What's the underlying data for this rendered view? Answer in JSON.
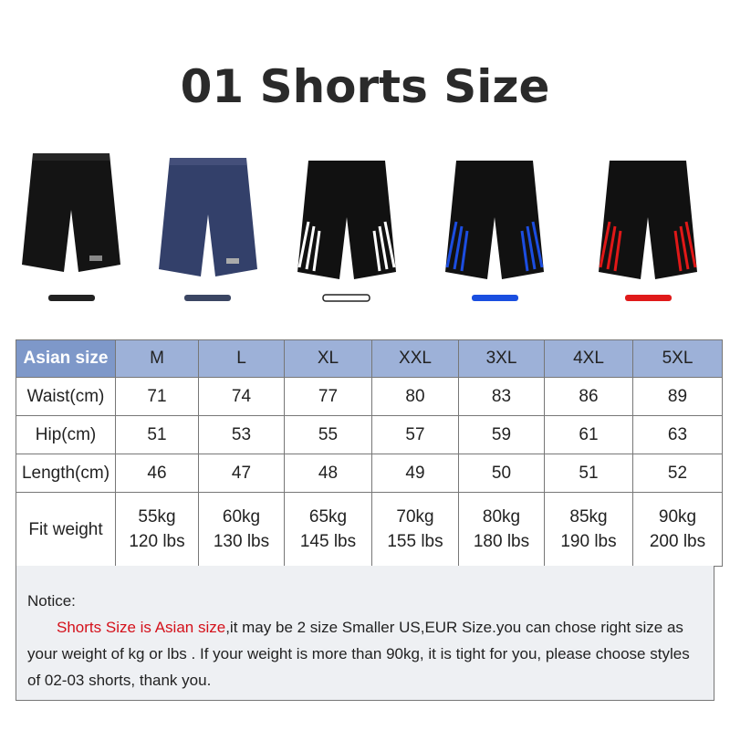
{
  "header": {
    "title": "01 Shorts Size"
  },
  "table": {
    "columns": [
      "Asian size",
      "M",
      "L",
      "XL",
      "XXL",
      "3XL",
      "4XL",
      "5XL"
    ],
    "rows": [
      [
        "Waist(cm)",
        "71",
        "74",
        "77",
        "80",
        "83",
        "86",
        "89"
      ],
      [
        "Hip(cm)",
        "51",
        "53",
        "55",
        "57",
        "59",
        "61",
        "63"
      ],
      [
        "Length(cm)",
        "46",
        "47",
        "48",
        "49",
        "50",
        "51",
        "52"
      ],
      [
        "Fit weight",
        [
          "55kg",
          "120 lbs"
        ],
        [
          "60kg",
          "130 lbs"
        ],
        [
          "65kg",
          "145 lbs"
        ],
        [
          "70kg",
          "155 lbs"
        ],
        [
          "80kg",
          "180 lbs"
        ],
        [
          "85kg",
          "190 lbs"
        ],
        [
          "90kg",
          "200 lbs"
        ]
      ]
    ]
  },
  "notice": {
    "label": "Notice:",
    "highlight": "Shorts Size is Asian size",
    "text": ",it may be 2 size Smaller US,EUR Size.you can chose right size as your weight of kg or lbs . If your weight is more than 90kg, it is tight for you, please choose styles of 02-03 shorts, thank you."
  }
}
